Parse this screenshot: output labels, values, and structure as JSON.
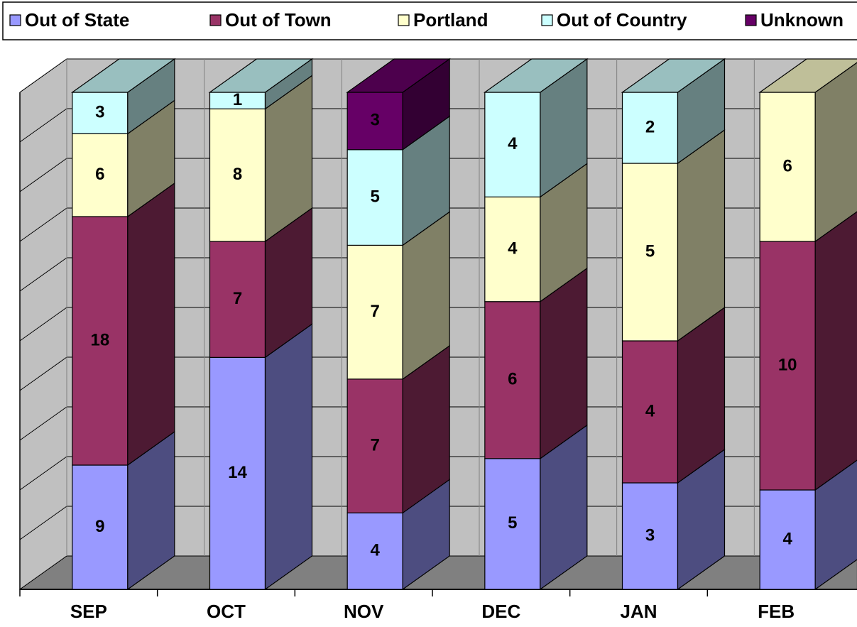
{
  "chart_data": {
    "type": "bar",
    "stacking": "percent",
    "categories": [
      "SEP",
      "OCT",
      "NOV",
      "DEC",
      "JAN",
      "FEB"
    ],
    "series": [
      {
        "name": "Out of State",
        "color": "#9999ff",
        "values": [
          9,
          14,
          4,
          5,
          3,
          4
        ]
      },
      {
        "name": "Out of Town",
        "color": "#993366",
        "values": [
          18,
          7,
          7,
          6,
          4,
          10
        ]
      },
      {
        "name": "Portland",
        "color": "#ffffcc",
        "values": [
          6,
          8,
          7,
          4,
          5,
          6
        ]
      },
      {
        "name": "Out of Country",
        "color": "#ccffff",
        "values": [
          3,
          1,
          5,
          4,
          2,
          null
        ]
      },
      {
        "name": "Unknown",
        "color": "#660066",
        "values": [
          null,
          null,
          3,
          null,
          null,
          null
        ]
      }
    ],
    "ylim": [
      0,
      100
    ],
    "yticks": [
      0,
      10,
      20,
      30,
      40,
      50,
      60,
      70,
      80,
      90,
      100
    ],
    "grid": true,
    "legend": "top"
  }
}
